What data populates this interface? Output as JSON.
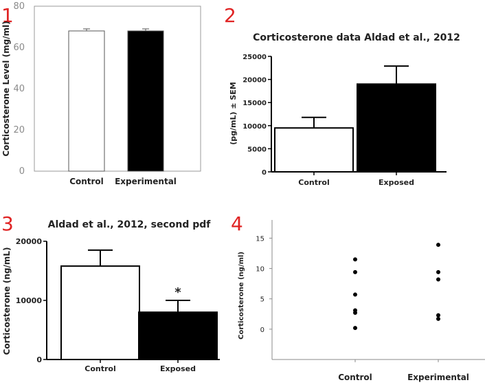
{
  "panel_numbers": [
    "1",
    "2",
    "3",
    "4"
  ],
  "colors": {
    "panel_number": "#e02424",
    "bar_filled": "#000000",
    "bar_empty": "#ffffff",
    "axis": "#000000",
    "frame": "#9a9a9a"
  },
  "chart_data": [
    {
      "type": "bar",
      "title": "",
      "xlabel": "",
      "ylabel": "Corticosterone Level (mg/ml)",
      "categories": [
        "Control",
        "Experimental"
      ],
      "values": [
        68,
        68
      ],
      "errors": [
        1,
        1
      ],
      "fills": [
        "#ffffff",
        "#000000"
      ],
      "ylim": [
        0,
        80
      ],
      "yticks": [
        "0",
        "20",
        "40",
        "60",
        "80"
      ],
      "grid": false
    },
    {
      "type": "bar",
      "title": "Corticosterone data Aldad et al., 2012",
      "xlabel": "",
      "ylabel": "(pg/mL) ± SEM",
      "categories": [
        "Control",
        "Exposed"
      ],
      "values": [
        9500,
        19000
      ],
      "errors": [
        2300,
        3900
      ],
      "fills": [
        "#ffffff",
        "#000000"
      ],
      "ylim": [
        0,
        25000
      ],
      "yticks": [
        "0",
        "5000",
        "10000",
        "15000",
        "20000",
        "25000"
      ],
      "grid": false
    },
    {
      "type": "bar",
      "title": "Aldad et al., 2012, second pdf",
      "xlabel": "",
      "ylabel": "Corticosterone (ng/mL)",
      "categories": [
        "Control",
        "Exposed"
      ],
      "values": [
        15800,
        8000
      ],
      "errors": [
        2700,
        2000
      ],
      "fills": [
        "#ffffff",
        "#000000"
      ],
      "annotations": [
        "",
        "*"
      ],
      "ylim": [
        0,
        20000
      ],
      "yticks": [
        "0",
        "10000",
        "20000"
      ],
      "grid": false
    },
    {
      "type": "scatter",
      "title": "",
      "xlabel": "",
      "ylabel": "Corticosterone (ng/ml)",
      "categories": [
        "Control",
        "Experimental"
      ],
      "series": [
        {
          "category": "Control",
          "values": [
            11.5,
            9.4,
            5.7,
            3.1,
            2.7,
            0.2
          ]
        },
        {
          "category": "Experimental",
          "values": [
            13.9,
            9.4,
            8.2,
            2.3,
            1.7
          ]
        }
      ],
      "ylim": [
        -5,
        18
      ],
      "yticks": [
        "0",
        "5",
        "10",
        "15"
      ],
      "grid": false
    }
  ]
}
